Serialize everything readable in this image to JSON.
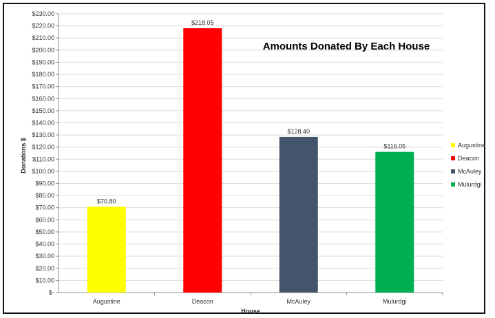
{
  "chart_data": {
    "type": "bar",
    "title": "Amounts Donated By Each House",
    "xlabel": "House",
    "ylabel": "Donations $",
    "categories": [
      "Augustine",
      "Deacon",
      "McAuley",
      "Mulurdgi"
    ],
    "values": [
      70.8,
      218.05,
      128.4,
      116.05
    ],
    "value_labels": [
      "$70.80",
      "$218.05",
      "$128.40",
      "$116.05"
    ],
    "colors": [
      "#ffff00",
      "#ff0000",
      "#44546a",
      "#00b050"
    ],
    "ylim": [
      0,
      230
    ],
    "ytick_step": 10,
    "yticks": [
      "$-",
      "$10.00",
      "$20.00",
      "$30.00",
      "$40.00",
      "$50.00",
      "$60.00",
      "$70.00",
      "$80.00",
      "$90.00",
      "$100.00",
      "$110.00",
      "$120.00",
      "$130.00",
      "$140.00",
      "$150.00",
      "$160.00",
      "$170.00",
      "$180.00",
      "$190.00",
      "$200.00",
      "$210.00",
      "$220.00",
      "$230.00"
    ],
    "grid": true,
    "legend": {
      "position": "right",
      "entries": [
        "Augustine",
        "Deacon",
        "McAuley",
        "Mulurdgi"
      ]
    }
  }
}
